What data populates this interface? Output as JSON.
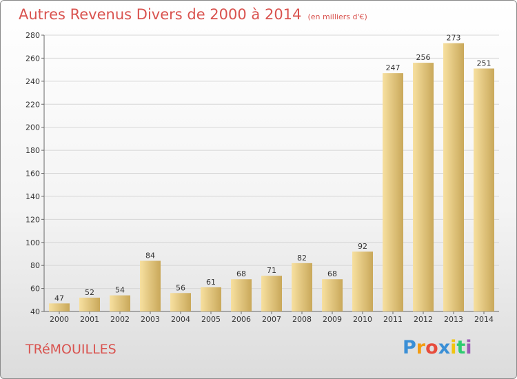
{
  "header": {
    "title": "Autres Revenus Divers de 2000 à 2014",
    "subtitle": "(en milliers d'€)"
  },
  "footer": {
    "commune": "TRéMOUILLES",
    "logo_letters": [
      "P",
      "r",
      "o",
      "x",
      "i",
      "t",
      "i"
    ],
    "logo_colors": [
      "#3a8fd6",
      "#f39c12",
      "#e74c3c",
      "#3a8fd6",
      "#f1c40f",
      "#2ecc71",
      "#9b59b6"
    ]
  },
  "colors": {
    "bar_light": "#f7e0a0",
    "bar_dark": "#c9a85a",
    "grid": "#d6d6d6",
    "title": "#d9534f"
  },
  "chart_data": {
    "type": "bar",
    "categories": [
      "2000",
      "2001",
      "2002",
      "2003",
      "2004",
      "2005",
      "2006",
      "2007",
      "2008",
      "2009",
      "2010",
      "2011",
      "2012",
      "2013",
      "2014"
    ],
    "values": [
      47,
      52,
      54,
      84,
      56,
      61,
      68,
      71,
      82,
      68,
      92,
      247,
      256,
      273,
      251
    ],
    "ylim": [
      40,
      280
    ],
    "yticks": [
      40,
      60,
      80,
      100,
      120,
      140,
      160,
      180,
      200,
      220,
      240,
      260,
      280
    ],
    "grid": true,
    "legend": "none"
  }
}
